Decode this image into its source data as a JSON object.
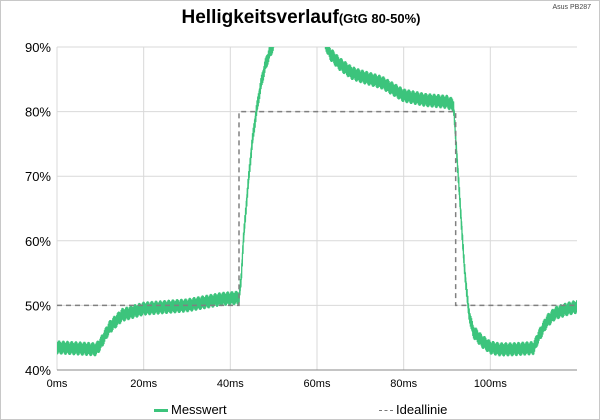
{
  "chart_data": {
    "type": "line",
    "title": "Helligkeitsverlauf",
    "subtitle": "(GtG 80-50%)",
    "device_label": "Asus PB287",
    "xlabel": "",
    "ylabel": "",
    "xlim": [
      0,
      120
    ],
    "ylim": [
      40,
      90
    ],
    "x_ticks": [
      "0ms",
      "20ms",
      "40ms",
      "60ms",
      "80ms",
      "100ms"
    ],
    "y_ticks": [
      "40%",
      "50%",
      "60%",
      "70%",
      "80%",
      "90%"
    ],
    "grid": true,
    "legend_position": "bottom",
    "series": [
      {
        "name": "Messwert",
        "color": "#3cc47c",
        "noise_amplitude": 1.1,
        "x": [
          0,
          9,
          10,
          12,
          15,
          20,
          30,
          38,
          42,
          42.5,
          43,
          44,
          45,
          46,
          47,
          48,
          49,
          50,
          50.5,
          61,
          63,
          65,
          68,
          70,
          75,
          80,
          85,
          90,
          91.5,
          92,
          93,
          94,
          95,
          96,
          98,
          100,
          102,
          105,
          110,
          111,
          113,
          115,
          118,
          120
        ],
        "y": [
          43.5,
          43.2,
          44,
          46.5,
          48.5,
          49.5,
          50,
          51,
          51.2,
          54,
          60,
          68,
          75,
          80,
          84,
          87,
          89,
          90.5,
          92,
          92,
          89,
          87.5,
          86,
          85.5,
          84.5,
          82.5,
          81.8,
          81.5,
          81,
          76,
          66,
          56,
          49,
          46,
          44.5,
          43.5,
          43.2,
          43.2,
          43.4,
          45,
          47.5,
          48.8,
          49.5,
          49.8
        ]
      },
      {
        "name": "Ideallinie",
        "color": "#808080",
        "x": [
          0,
          42,
          42,
          92,
          92,
          120
        ],
        "y": [
          50,
          50,
          80,
          80,
          50,
          50
        ]
      }
    ]
  }
}
